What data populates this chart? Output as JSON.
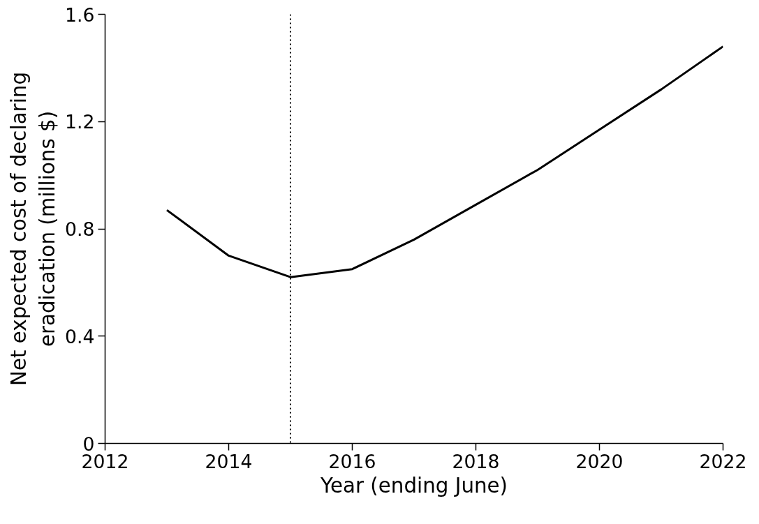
{
  "chart_data": {
    "type": "line",
    "xlabel": "Year (ending June)",
    "ylabel": "Net expected cost of declaring\neradication (millions $)",
    "x": [
      2013,
      2014,
      2015,
      2016,
      2017,
      2018,
      2019,
      2020,
      2021,
      2022
    ],
    "series": [
      {
        "color": "#000000",
        "values": [
          0.87,
          0.7,
          0.62,
          0.65,
          0.76,
          0.89,
          1.02,
          1.17,
          1.32,
          1.48
        ]
      }
    ],
    "xlim": [
      2012,
      2022
    ],
    "xticks": [
      2012,
      2014,
      2016,
      2018,
      2020,
      2022
    ],
    "ylim": [
      0,
      1.6
    ],
    "yticks": [
      {
        "value": 0,
        "label": "0"
      },
      0.4,
      0.8,
      1.2,
      1.6
    ],
    "ref_lines": [
      {
        "axis": "x",
        "value": 2015,
        "color": "#000000",
        "line_style": "dotted"
      }
    ],
    "grid": false,
    "marker": "none",
    "line_style": "solid"
  }
}
